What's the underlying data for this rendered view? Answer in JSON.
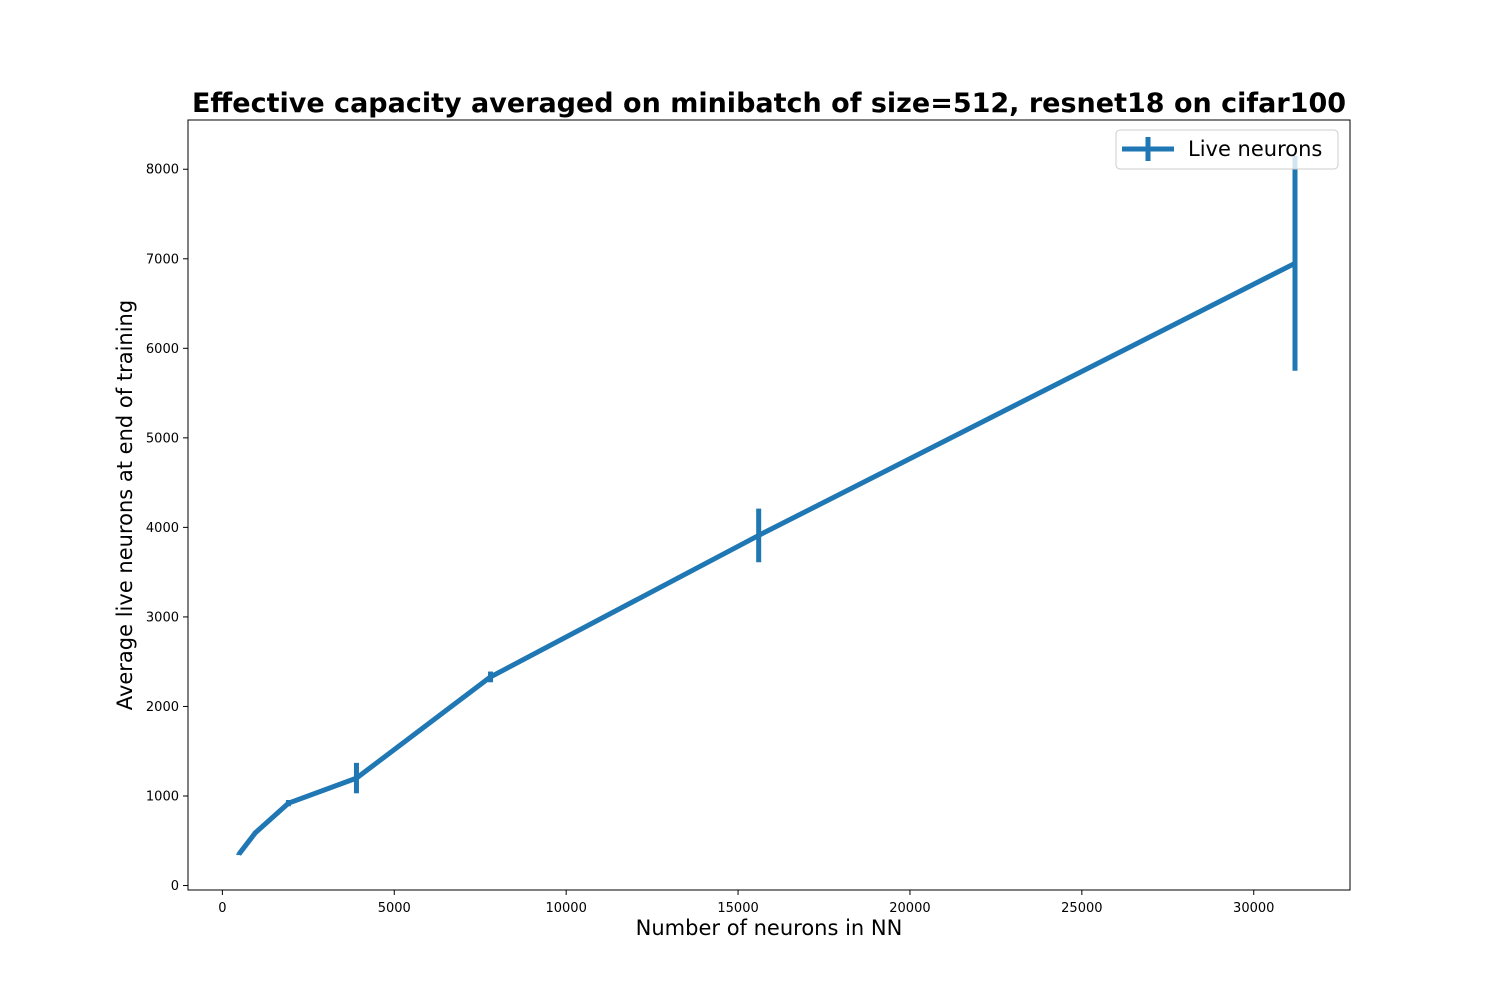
{
  "chart_data": {
    "type": "line",
    "title": "Effective capacity averaged on minibatch of size=512, resnet18 on cifar100",
    "xlabel": "Number of neurons in NN",
    "ylabel": "Average live neurons at end of training",
    "xlim": [
      -1000,
      32800
    ],
    "ylim": [
      -50,
      8550
    ],
    "xticks": [
      0,
      5000,
      10000,
      15000,
      20000,
      25000,
      30000
    ],
    "yticks": [
      0,
      1000,
      2000,
      3000,
      4000,
      5000,
      6000,
      7000,
      8000
    ],
    "grid": false,
    "legend_position": "upper right",
    "series": [
      {
        "name": "Live neurons",
        "color": "#1f77b4",
        "x": [
          480,
          960,
          1920,
          3900,
          7800,
          15600,
          31200
        ],
        "y": [
          350,
          590,
          920,
          1200,
          2330,
          3910,
          6950
        ],
        "yerr": [
          10,
          15,
          35,
          170,
          60,
          300,
          1200
        ]
      }
    ]
  }
}
